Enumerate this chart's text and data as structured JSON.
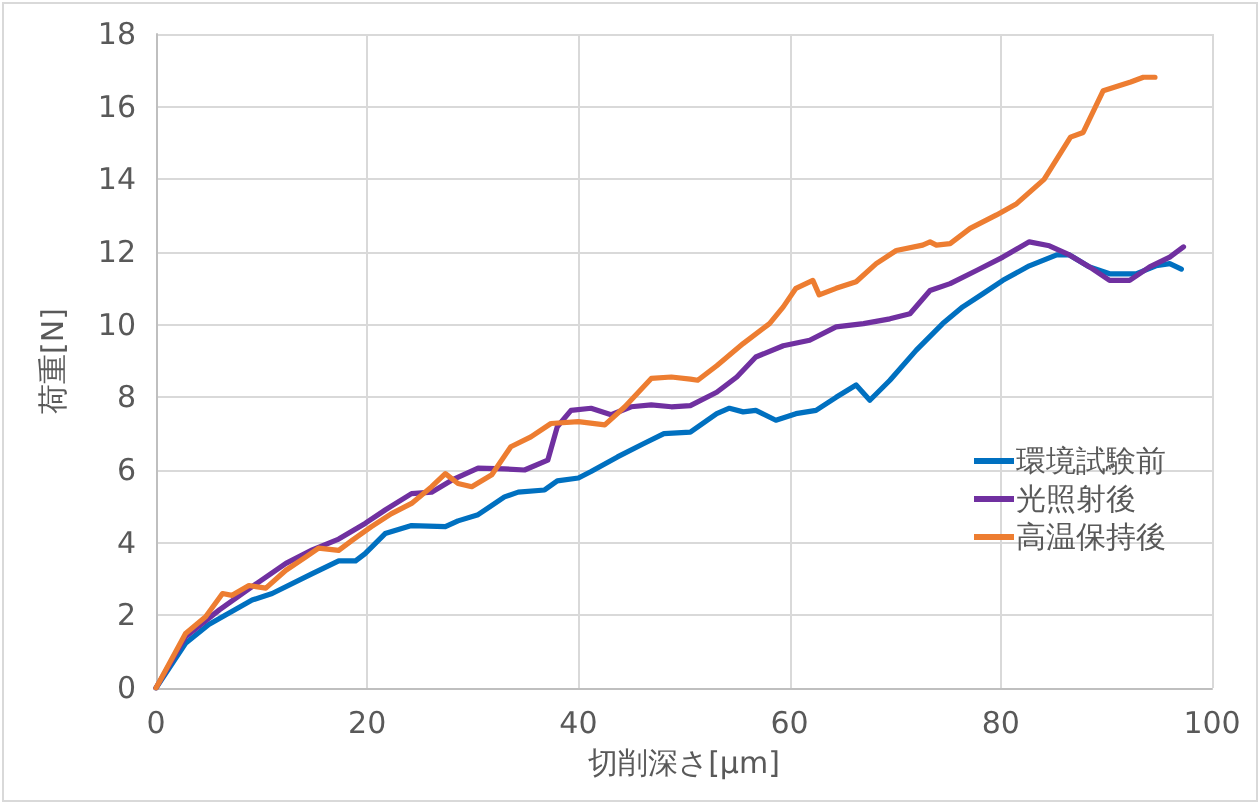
{
  "chart_data": {
    "type": "line",
    "xlabel": "切削深さ[μm]",
    "ylabel": "荷重[N]",
    "xlim": [
      0,
      100
    ],
    "xticks": [
      0,
      20,
      40,
      60,
      80,
      100
    ],
    "ylim": [
      0,
      18
    ],
    "yticks": [
      0,
      2,
      4,
      6,
      8,
      10,
      12,
      14,
      16,
      18
    ],
    "grid": true,
    "legend": "right",
    "marker": "none",
    "line_style": "solid",
    "series": [
      {
        "name": "環境試験前",
        "color": "#0070c0",
        "x": [
          0,
          2.8,
          5,
          9.1,
          11,
          14.8,
          17.3,
          18.9,
          19.8,
          21.7,
          24.2,
          27.4,
          28.6,
          30.5,
          33,
          34.3,
          36.8,
          38,
          40,
          41.2,
          43.7,
          46.2,
          48.1,
          50.6,
          53.1,
          54.3,
          55.6,
          56.8,
          58.7,
          60.6,
          62.5,
          64.4,
          66.3,
          67.6,
          69.5,
          72,
          74.5,
          76.4,
          78.3,
          80.2,
          82.7,
          85.3,
          86.5,
          88.4,
          90.3,
          92.8,
          94.7,
          96,
          97.1
        ],
        "values": [
          0,
          1.23,
          1.75,
          2.42,
          2.6,
          3.15,
          3.5,
          3.5,
          3.7,
          4.25,
          4.47,
          4.44,
          4.6,
          4.77,
          5.26,
          5.39,
          5.45,
          5.7,
          5.78,
          5.96,
          6.36,
          6.73,
          7.0,
          7.04,
          7.55,
          7.7,
          7.6,
          7.64,
          7.37,
          7.55,
          7.64,
          8.0,
          8.34,
          7.92,
          8.47,
          9.3,
          10.03,
          10.49,
          10.85,
          11.22,
          11.62,
          11.92,
          11.92,
          11.59,
          11.4,
          11.4,
          11.62,
          11.68,
          11.53
        ]
      },
      {
        "name": "光照射後",
        "color": "#7030a0",
        "x": [
          0,
          2.8,
          6,
          9.1,
          12.3,
          14.8,
          17.3,
          19.8,
          21.7,
          24.2,
          26.1,
          28,
          30.5,
          33,
          34.9,
          37.1,
          38,
          39.3,
          41.2,
          43.1,
          45,
          46.9,
          48.8,
          50.6,
          53.1,
          55,
          56.8,
          59.4,
          61.9,
          64.4,
          67,
          69.5,
          71.4,
          73.3,
          75.2,
          77.7,
          80.2,
          82.7,
          84.6,
          86.5,
          88.4,
          90.3,
          92.2,
          94.1,
          96,
          97.3
        ],
        "values": [
          0,
          1.41,
          2.15,
          2.79,
          3.43,
          3.8,
          4.1,
          4.53,
          4.9,
          5.35,
          5.39,
          5.72,
          6.05,
          6.03,
          6.0,
          6.27,
          7.19,
          7.64,
          7.7,
          7.52,
          7.74,
          7.79,
          7.74,
          7.77,
          8.14,
          8.56,
          9.11,
          9.42,
          9.57,
          9.94,
          10.03,
          10.16,
          10.3,
          10.94,
          11.13,
          11.49,
          11.86,
          12.28,
          12.17,
          11.92,
          11.59,
          11.22,
          11.22,
          11.59,
          11.86,
          12.14
        ]
      },
      {
        "name": "高温保持後",
        "color": "#ed7d31",
        "x": [
          0,
          2.8,
          4.7,
          6.3,
          7.2,
          8.8,
          10.4,
          12.3,
          14.2,
          15.4,
          17.3,
          18.6,
          20.4,
          22.3,
          24.2,
          26.1,
          27.4,
          28.6,
          29.9,
          31.8,
          33.6,
          35.5,
          37.4,
          40,
          42.5,
          44.4,
          46.9,
          48.8,
          50.6,
          51.3,
          53.1,
          55.6,
          58.1,
          59.4,
          60.6,
          62.2,
          62.8,
          64.4,
          66.3,
          68.2,
          70.1,
          72.6,
          73.3,
          73.9,
          75.2,
          77.1,
          79.6,
          81.5,
          84.1,
          86.6,
          87.8,
          89.7,
          92.3,
          93.5,
          94.6
        ],
        "values": [
          0,
          1.5,
          1.96,
          2.6,
          2.55,
          2.82,
          2.75,
          3.24,
          3.61,
          3.85,
          3.79,
          4.07,
          4.44,
          4.8,
          5.08,
          5.54,
          5.9,
          5.63,
          5.54,
          5.87,
          6.64,
          6.91,
          7.28,
          7.33,
          7.24,
          7.74,
          8.52,
          8.56,
          8.5,
          8.47,
          8.87,
          9.48,
          10.03,
          10.49,
          11.0,
          11.22,
          10.82,
          11.0,
          11.18,
          11.68,
          12.04,
          12.19,
          12.28,
          12.19,
          12.23,
          12.65,
          13.02,
          13.33,
          14.0,
          15.16,
          15.29,
          16.44,
          16.68,
          16.81,
          16.81
        ]
      }
    ]
  }
}
